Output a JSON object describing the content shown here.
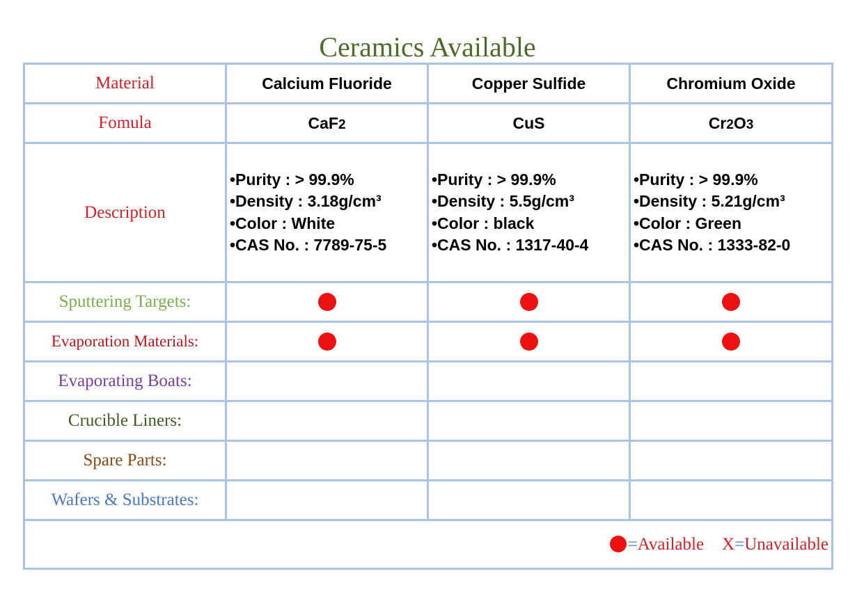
{
  "title": "Ceramics Available",
  "labels": {
    "material": "Material",
    "formula": "Fomula",
    "description": "Description",
    "sputtering": "Sputtering Targets:",
    "evaporation": "Evaporation Materials:",
    "boats": "Evaporating Boats:",
    "crucible": "Crucible Liners:",
    "spare": "Spare Parts:",
    "wafers": "Wafers & Substrates:"
  },
  "label_colors": {
    "material": "#d62027",
    "sputtering": "#79ae4a",
    "evaporation": "#c0161c",
    "boats": "#7a3ea0",
    "crucible": "#3e5c22",
    "spare": "#8b4a17",
    "wafers": "#4a78c0"
  },
  "available_dot_color": "#ee1111",
  "materials": [
    {
      "name": "Calcium Fluoride",
      "formula": {
        "a": "CaF",
        "b": "2",
        "c": "",
        "d": ""
      },
      "purity": "•Purity : > 99.9%",
      "density": "•Density : 3.18g/cm³",
      "color": "•Color : White",
      "cas": "•CAS No. : 7789-75-5",
      "sputtering": "available",
      "evaporation": "available"
    },
    {
      "name": "Copper Sulfide",
      "formula": {
        "a": "CuS",
        "b": "",
        "c": "",
        "d": ""
      },
      "purity": "•Purity : > 99.9%",
      "density": "•Density : 5.5g/cm³",
      "color": "•Color : black",
      "cas": "•CAS No. : 1317-40-4",
      "sputtering": "available",
      "evaporation": "available"
    },
    {
      "name": "Chromium Oxide",
      "formula": {
        "a": "Cr",
        "b": "2",
        "c": "O",
        "d": "3"
      },
      "purity": "•Purity : > 99.9%",
      "density": "•Density : 5.21g/cm³",
      "color": "•Color : Green",
      "cas": "•CAS No. : 1333-82-0",
      "sputtering": "available",
      "evaporation": "available"
    }
  ],
  "legend": {
    "eq": "=",
    "available": "Available",
    "x": "X",
    "unavailable": "Unavailable"
  }
}
